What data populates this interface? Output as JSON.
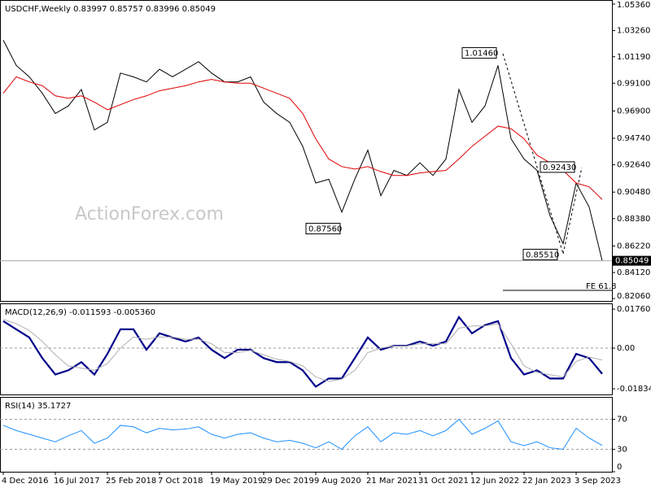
{
  "chart_data": [
    {
      "type": "line",
      "title": "USDCHF,Weekly  0.83997 0.85757 0.83996 0.85049",
      "watermark": "ActionForex.com",
      "last": {
        "value": 0.85049,
        "label": "0.85049"
      },
      "annotations": [
        {
          "value": 1.0146,
          "label": "1.01460"
        },
        {
          "value": 0.8756,
          "label": "0.87560"
        },
        {
          "value": 0.8551,
          "label": "0.85510"
        },
        {
          "value": 0.9243,
          "label": "0.92430"
        },
        {
          "label": "FE 61.8"
        }
      ],
      "ylim": [
        0.8187,
        1.0568
      ],
      "yticks": [
        {
          "value": 1.0536,
          "label": "1.05360"
        },
        {
          "value": 1.0326,
          "label": "1.03260"
        },
        {
          "value": 1.0119,
          "label": "1.01190"
        },
        {
          "value": 0.991,
          "label": "0.99100"
        },
        {
          "value": 0.969,
          "label": "0.96900"
        },
        {
          "value": 0.9474,
          "label": "0.94740"
        },
        {
          "value": 0.9264,
          "label": "0.92640"
        },
        {
          "value": 0.9048,
          "label": "0.90480"
        },
        {
          "value": 0.8838,
          "label": "0.88380"
        },
        {
          "value": 0.8622,
          "label": "0.86220"
        },
        {
          "value": 0.8412,
          "label": "0.84120"
        },
        {
          "value": 0.8206,
          "label": "0.82060"
        }
      ],
      "grid": false,
      "series": [
        {
          "color": "#000000",
          "width": 1,
          "values": [
            1.025,
            1.005,
            0.996,
            0.983,
            0.967,
            0.973,
            0.986,
            0.954,
            0.96,
            0.999,
            0.996,
            0.992,
            1.002,
            0.996,
            1.002,
            1.008,
            0.999,
            0.992,
            0.992,
            0.996,
            0.976,
            0.967,
            0.96,
            0.941,
            0.912,
            0.915,
            0.889,
            0.915,
            0.938,
            0.902,
            0.922,
            0.918,
            0.928,
            0.918,
            0.931,
            0.986,
            0.96,
            0.973,
            1.005,
            0.947,
            0.931,
            0.922,
            0.886,
            0.864,
            0.912,
            0.893,
            0.85049
          ]
        },
        {
          "color": "#e00000",
          "width": 1,
          "values": [
            0.983,
            0.996,
            0.992,
            0.989,
            0.981,
            0.979,
            0.981,
            0.976,
            0.97,
            0.974,
            0.978,
            0.981,
            0.985,
            0.987,
            0.989,
            0.992,
            0.994,
            0.992,
            0.991,
            0.991,
            0.987,
            0.983,
            0.979,
            0.967,
            0.947,
            0.931,
            0.925,
            0.923,
            0.925,
            0.921,
            0.918,
            0.918,
            0.92,
            0.921,
            0.922,
            0.931,
            0.941,
            0.949,
            0.957,
            0.955,
            0.947,
            0.934,
            0.928,
            0.922,
            0.912,
            0.909,
            0.899
          ]
        }
      ]
    },
    {
      "type": "line",
      "title": "MACD(12,26,9) -0.011593 -0.005360",
      "ylim": [
        -0.0209,
        0.0202
      ],
      "yticks": [
        0.017603,
        {
          "value": 0,
          "label": "0.00"
        },
        -0.01834
      ],
      "grid": true,
      "series": [
        {
          "color": "#00008b",
          "width": 2.2,
          "values": [
            0.0122,
            0.0085,
            0.0048,
            -0.0045,
            -0.0119,
            -0.01,
            -0.0063,
            -0.0119,
            -0.0026,
            0.0085,
            0.0085,
            -0.0007,
            0.0067,
            0.0048,
            0.003,
            0.0048,
            -0.0007,
            -0.0045,
            -0.0007,
            -0.0007,
            -0.0045,
            -0.0063,
            -0.0063,
            -0.01,
            -0.0174,
            -0.0137,
            -0.0137,
            -0.0045,
            0.0048,
            -0.0007,
            0.0011,
            0.0011,
            0.003,
            0.0011,
            0.003,
            0.014,
            0.0067,
            0.0104,
            0.0122,
            -0.0045,
            -0.0119,
            -0.01,
            -0.0137,
            -0.0137,
            -0.0026,
            -0.0045,
            -0.011593
          ]
        },
        {
          "color": "#b0b0b0",
          "width": 1,
          "values": [
            0.013,
            0.011,
            0.008,
            0.003,
            -0.003,
            -0.008,
            -0.009,
            -0.01,
            -0.007,
            0.0,
            0.005,
            0.004,
            0.005,
            0.005,
            0.004,
            0.004,
            0.002,
            -0.002,
            -0.002,
            -0.001,
            -0.003,
            -0.005,
            -0.006,
            -0.008,
            -0.013,
            -0.015,
            -0.014,
            -0.01,
            -0.002,
            0.0,
            0.001,
            0.001,
            0.002,
            0.002,
            0.002,
            0.009,
            0.01,
            0.01,
            0.011,
            0.002,
            -0.008,
            -0.011,
            -0.012,
            -0.013,
            -0.006,
            -0.004,
            -0.00536
          ]
        }
      ]
    },
    {
      "type": "line",
      "title": "RSI(14) 35.1727",
      "ylim": [
        0,
        100
      ],
      "yticks": [
        70,
        30,
        0
      ],
      "grid": true,
      "categories": [
        "4 Dec 2016",
        null,
        null,
        null,
        "16 Jul 2017",
        null,
        null,
        null,
        "25 Feb 2018",
        null,
        null,
        null,
        "7 Oct 2018",
        null,
        null,
        null,
        "19 May 2019",
        null,
        null,
        null,
        "29 Dec 2019",
        null,
        null,
        null,
        "9 Aug 2020",
        null,
        null,
        null,
        "21 Mar 2021",
        null,
        null,
        null,
        "31 Oct 2021",
        null,
        null,
        null,
        "12 Jun 2022",
        null,
        null,
        null,
        "22 Jan 2023",
        null,
        null,
        null,
        "3 Sep 2023",
        null,
        null
      ],
      "series": [
        {
          "color": "#1e90ff",
          "width": 1,
          "values": [
            62,
            55,
            50,
            45,
            40,
            48,
            55,
            38,
            45,
            62,
            60,
            52,
            58,
            56,
            57,
            60,
            50,
            45,
            50,
            52,
            45,
            40,
            42,
            38,
            32,
            40,
            30,
            48,
            60,
            40,
            52,
            50,
            55,
            48,
            55,
            70,
            50,
            58,
            68,
            40,
            35,
            40,
            32,
            30,
            58,
            45,
            35.1727
          ]
        }
      ]
    }
  ]
}
